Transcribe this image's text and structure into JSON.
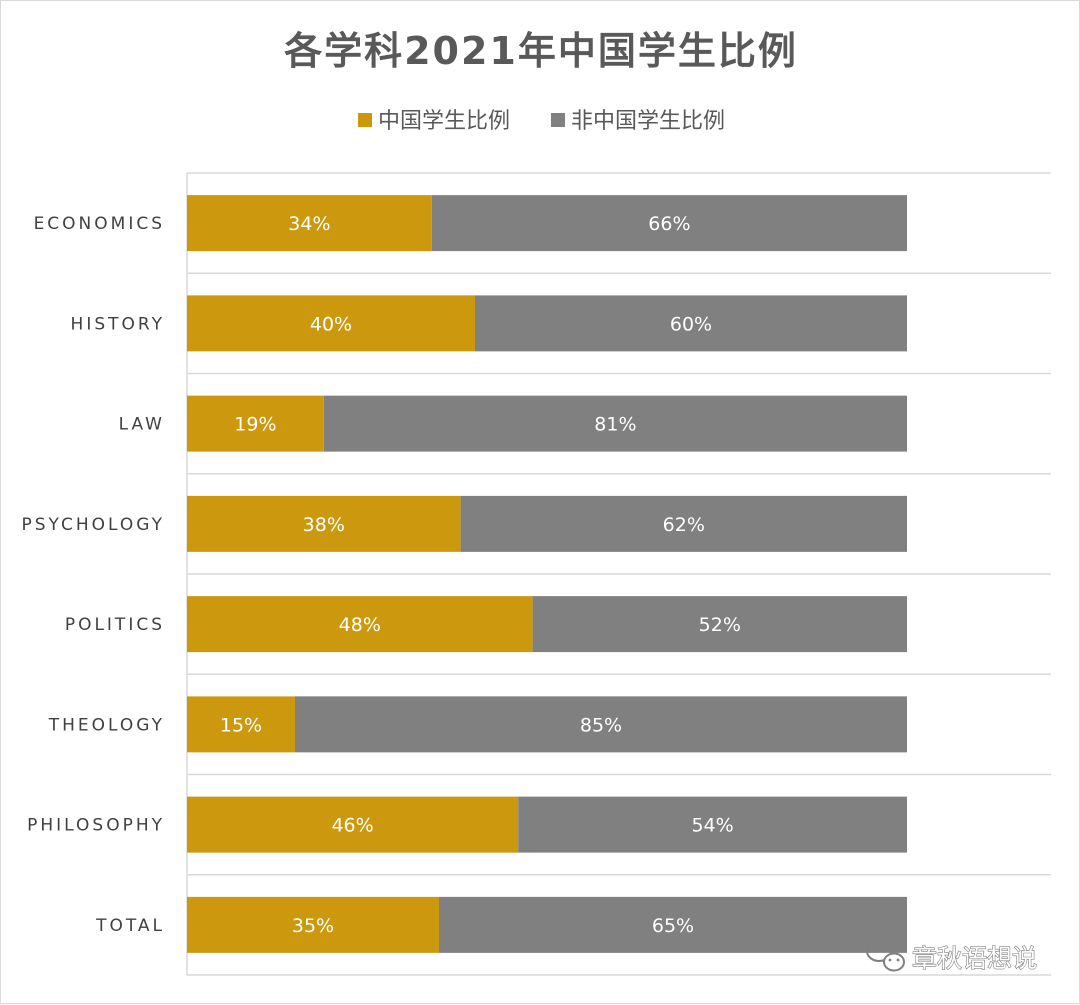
{
  "chart_data": {
    "type": "bar",
    "orientation": "horizontal",
    "stacked": true,
    "title": "各学科2021年中国学生比例",
    "categories": [
      "ECONOMICS",
      "HISTORY",
      "LAW",
      "PSYCHOLOGY",
      "POLITICS",
      "THEOLOGY",
      "PHILOSOPHY",
      "TOTAL"
    ],
    "series": [
      {
        "name": "中国学生比例",
        "color": "#CC990E",
        "values": [
          34,
          40,
          19,
          38,
          48,
          15,
          46,
          35
        ]
      },
      {
        "name": "非中国学生比例",
        "color": "#808080",
        "values": [
          66,
          60,
          81,
          62,
          52,
          85,
          54,
          65
        ]
      }
    ],
    "value_format": "percent",
    "xlim": [
      0,
      100
    ],
    "legend_position": "top",
    "grid": true,
    "data_labels": true
  },
  "watermark": {
    "icon": "wechat-icon",
    "text": "章秋语想说"
  }
}
